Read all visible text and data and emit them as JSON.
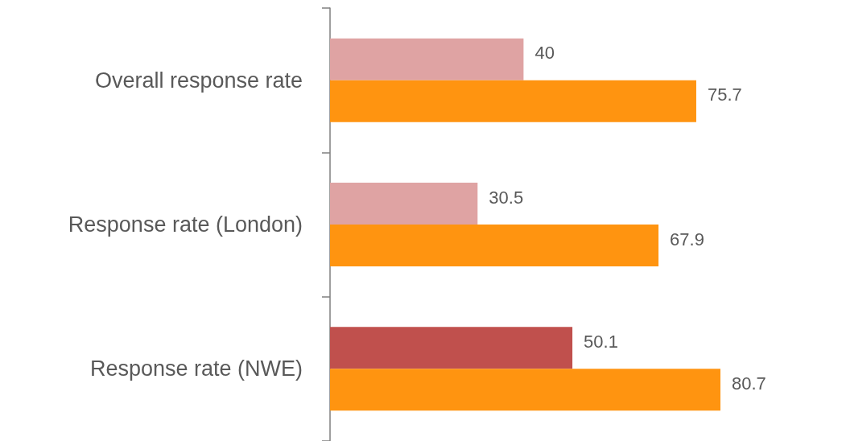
{
  "chart_data": {
    "type": "bar",
    "orientation": "horizontal",
    "categories": [
      "Overall response rate",
      "Response rate (London)",
      "Response rate (NWE)"
    ],
    "series": [
      {
        "colors": [
          "#dfa3a3",
          "#dfa3a3",
          "#c0504d"
        ],
        "values": [
          40,
          30.5,
          50.1
        ]
      },
      {
        "color": "#ff9410",
        "values": [
          75.7,
          67.9,
          80.7
        ]
      }
    ],
    "data_labels": true,
    "grid": false
  }
}
